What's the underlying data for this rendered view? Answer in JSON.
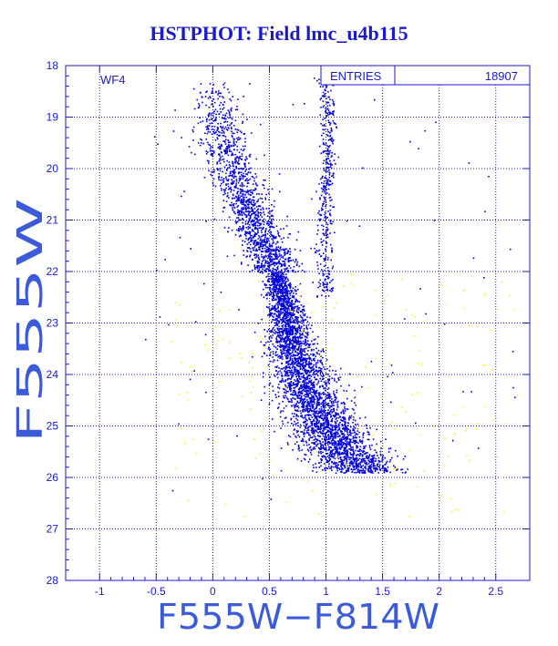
{
  "title": "HSTPHOT: Field lmc_u4b115",
  "chart_data": {
    "type": "scatter",
    "title": "HSTPHOT: Field lmc_u4b115",
    "xlabel": "F555W−F814W",
    "ylabel": "F555W",
    "xlim": [
      -1.3,
      2.8
    ],
    "ylim": [
      28,
      18
    ],
    "y_inverted": true,
    "grid": true,
    "x_ticks": [
      -1,
      -0.5,
      0,
      0.5,
      1,
      1.5,
      2,
      2.5
    ],
    "x_tick_labels": [
      "-1",
      "-0.5",
      "0",
      "0.5",
      "1",
      "1.5",
      "2",
      "2.5"
    ],
    "y_ticks": [
      18,
      19,
      20,
      21,
      22,
      23,
      24,
      25,
      26,
      27,
      28
    ],
    "y_tick_labels": [
      "18",
      "19",
      "20",
      "21",
      "22",
      "23",
      "24",
      "25",
      "26",
      "27",
      "28"
    ],
    "panel_label": "WF4",
    "stats_box": {
      "label": "ENTRIES",
      "value": "18907"
    },
    "series": [
      {
        "color": "#0000dd",
        "ridge": [
          [
            0.02,
            18.3
          ],
          [
            0.05,
            19.0
          ],
          [
            0.1,
            19.6
          ],
          [
            0.18,
            20.1
          ],
          [
            0.28,
            20.6
          ],
          [
            0.38,
            21.1
          ],
          [
            0.48,
            21.6
          ],
          [
            0.56,
            22.1
          ],
          [
            0.62,
            22.6
          ],
          [
            0.66,
            23.1
          ],
          [
            0.72,
            23.6
          ],
          [
            0.8,
            24.1
          ],
          [
            0.9,
            24.6
          ],
          [
            1.02,
            25.1
          ],
          [
            1.15,
            25.5
          ],
          [
            1.3,
            25.8
          ]
        ],
        "giant_branch": [
          [
            0.98,
            22.5
          ],
          [
            0.98,
            21.5
          ],
          [
            0.99,
            20.5
          ],
          [
            1.01,
            19.6
          ],
          [
            1.02,
            19.0
          ],
          [
            1.0,
            18.5
          ],
          [
            0.98,
            18.2
          ]
        ]
      },
      {
        "color": "#ffee22",
        "region": {
          "x": [
            -0.4,
            2.7
          ],
          "y": [
            22.0,
            26.8
          ]
        }
      }
    ]
  }
}
